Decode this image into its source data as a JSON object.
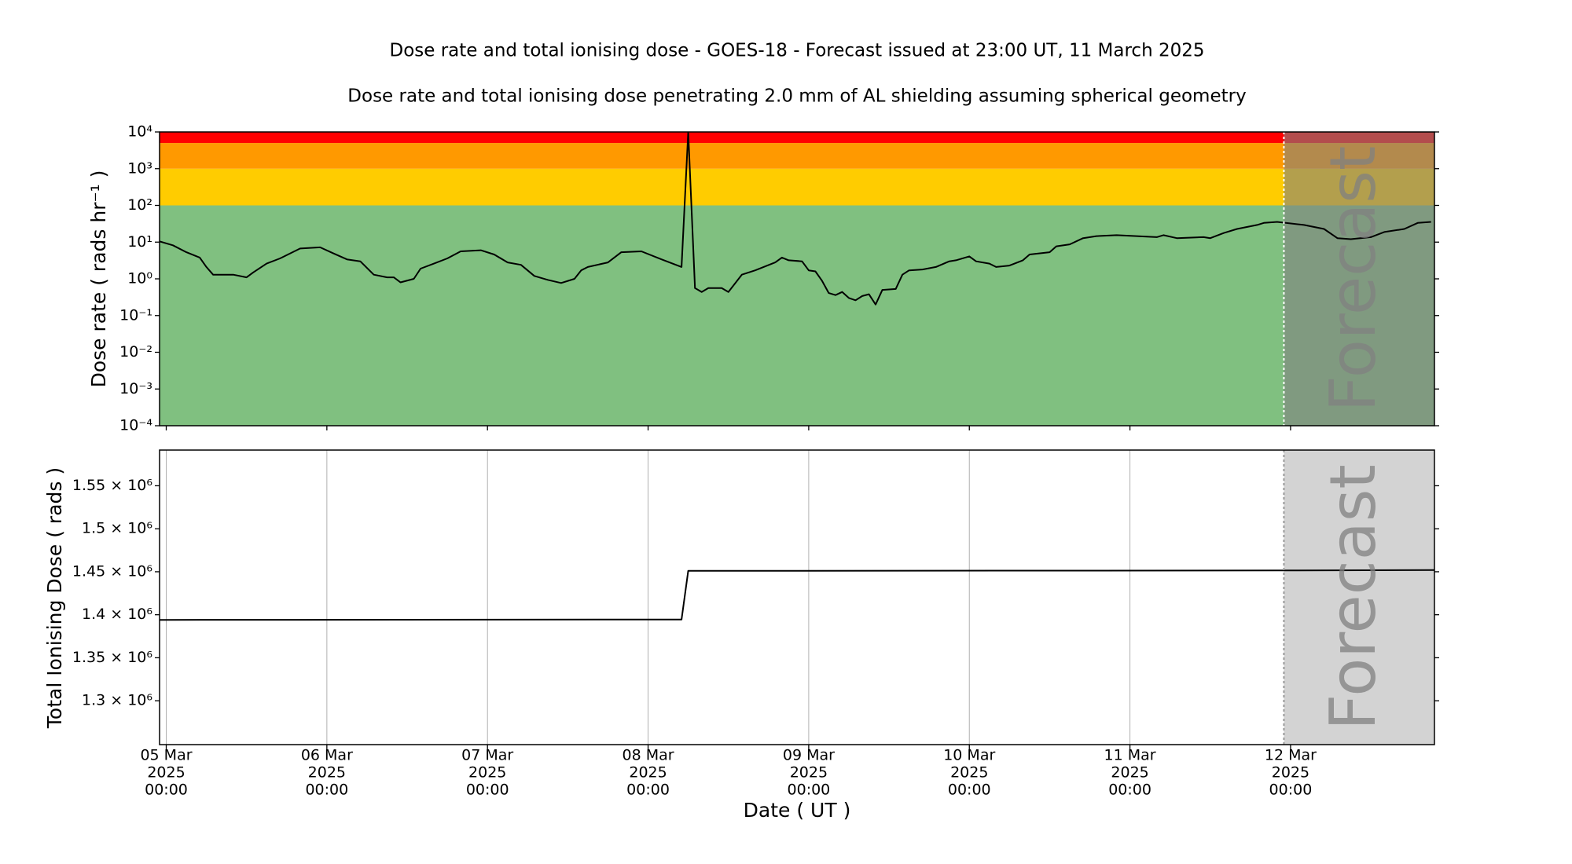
{
  "chart_data": [
    {
      "type": "line",
      "title": "Dose rate and total ionising dose - GOES-18 - Forecast issued at 23:00 UT, 11 March 2025",
      "subtitle": "Dose rate and total ionising dose penetrating 2.0 mm of AL shielding assuming spherical geometry",
      "ylabel": "Dose rate ( rads hr⁻¹ )",
      "yscale": "log",
      "xlim": [
        "2025-03-04T23:00",
        "2025-03-12T21:30"
      ],
      "ylim": [
        0.0001,
        10000
      ],
      "yticks": [
        {
          "value": 0.0001,
          "label": "10⁻⁴"
        },
        {
          "value": 0.001,
          "label": "10⁻³"
        },
        {
          "value": 0.01,
          "label": "10⁻²"
        },
        {
          "value": 0.1,
          "label": "10⁻¹"
        },
        {
          "value": 1,
          "label": "10⁰"
        },
        {
          "value": 10,
          "label": "10¹"
        },
        {
          "value": 100,
          "label": "10²"
        },
        {
          "value": 1000,
          "label": "10³"
        },
        {
          "value": 10000,
          "label": "10⁴"
        }
      ],
      "bands": [
        {
          "from": 0.0001,
          "to": 100,
          "color": "#80c080"
        },
        {
          "from": 100,
          "to": 1000,
          "color": "#ffcc00"
        },
        {
          "from": 1000,
          "to": 5000,
          "color": "#ff9900"
        },
        {
          "from": 5000,
          "to": 10000,
          "color": "#ff0000"
        }
      ],
      "forecast": {
        "start": "2025-03-11T23:00",
        "label": "Forecast",
        "color": "#808080",
        "line_color": "#ffffff"
      },
      "series": [
        {
          "color": "#000000",
          "x": [
            "2025-03-04T23:00",
            "2025-03-05T01:00",
            "2025-03-05T03:00",
            "2025-03-05T05:00",
            "2025-03-05T06:00",
            "2025-03-05T07:00",
            "2025-03-05T09:00",
            "2025-03-05T10:00",
            "2025-03-05T12:00",
            "2025-03-05T13:00",
            "2025-03-05T15:00",
            "2025-03-05T17:00",
            "2025-03-05T20:00",
            "2025-03-05T23:00",
            "2025-03-06T01:00",
            "2025-03-06T03:00",
            "2025-03-06T05:00",
            "2025-03-06T07:00",
            "2025-03-06T09:00",
            "2025-03-06T10:00",
            "2025-03-06T11:00",
            "2025-03-06T13:00",
            "2025-03-06T14:00",
            "2025-03-06T16:00",
            "2025-03-06T18:00",
            "2025-03-06T20:00",
            "2025-03-06T23:00",
            "2025-03-07T01:00",
            "2025-03-07T03:00",
            "2025-03-07T05:00",
            "2025-03-07T07:00",
            "2025-03-07T09:00",
            "2025-03-07T11:00",
            "2025-03-07T13:00",
            "2025-03-07T14:00",
            "2025-03-07T15:00",
            "2025-03-07T18:00",
            "2025-03-07T20:00",
            "2025-03-07T23:00",
            "2025-03-08T02:00",
            "2025-03-08T05:00",
            "2025-03-08T06:00",
            "2025-03-08T07:00",
            "2025-03-08T08:00",
            "2025-03-08T09:00",
            "2025-03-08T11:00",
            "2025-03-08T12:00",
            "2025-03-08T14:00",
            "2025-03-08T16:00",
            "2025-03-08T19:00",
            "2025-03-08T20:00",
            "2025-03-08T21:00",
            "2025-03-08T23:00",
            "2025-03-09T00:00",
            "2025-03-09T01:00",
            "2025-03-09T02:00",
            "2025-03-09T03:00",
            "2025-03-09T04:00",
            "2025-03-09T05:00",
            "2025-03-09T06:00",
            "2025-03-09T07:00",
            "2025-03-09T08:00",
            "2025-03-09T09:00",
            "2025-03-09T10:00",
            "2025-03-09T11:00",
            "2025-03-09T13:00",
            "2025-03-09T14:00",
            "2025-03-09T15:00",
            "2025-03-09T17:00",
            "2025-03-09T19:00",
            "2025-03-09T21:00",
            "2025-03-09T22:00",
            "2025-03-10T00:00",
            "2025-03-10T01:00",
            "2025-03-10T03:00",
            "2025-03-10T04:00",
            "2025-03-10T06:00",
            "2025-03-10T08:00",
            "2025-03-10T09:00",
            "2025-03-10T12:00",
            "2025-03-10T13:00",
            "2025-03-10T15:00",
            "2025-03-10T17:00",
            "2025-03-10T19:00",
            "2025-03-10T22:00",
            "2025-03-11T01:00",
            "2025-03-11T04:00",
            "2025-03-11T05:00",
            "2025-03-11T07:00",
            "2025-03-11T11:00",
            "2025-03-11T12:00",
            "2025-03-11T14:00",
            "2025-03-11T16:00",
            "2025-03-11T19:00",
            "2025-03-11T20:00",
            "2025-03-11T22:00",
            "2025-03-12T02:00",
            "2025-03-12T05:00",
            "2025-03-12T07:00",
            "2025-03-12T09:00",
            "2025-03-12T12:00",
            "2025-03-12T14:00",
            "2025-03-12T17:00",
            "2025-03-12T19:00",
            "2025-03-12T21:00"
          ],
          "values": [
            10.5,
            8.2,
            5.3,
            3.8,
            2.1,
            1.3,
            1.3,
            1.3,
            1.1,
            1.5,
            2.6,
            3.6,
            6.7,
            7.2,
            4.9,
            3.4,
            3.0,
            1.3,
            1.1,
            1.1,
            0.8,
            1.0,
            1.9,
            2.6,
            3.6,
            5.6,
            6.0,
            4.6,
            2.8,
            2.4,
            1.2,
            0.94,
            0.77,
            1.0,
            1.7,
            2.1,
            2.8,
            5.3,
            5.6,
            3.4,
            2.1,
            10000,
            0.56,
            0.44,
            0.56,
            0.56,
            0.44,
            1.3,
            1.7,
            2.8,
            3.8,
            3.2,
            3.0,
            1.7,
            1.6,
            0.88,
            0.41,
            0.36,
            0.44,
            0.3,
            0.26,
            0.34,
            0.38,
            0.2,
            0.5,
            0.53,
            1.3,
            1.7,
            1.8,
            2.1,
            3.0,
            3.2,
            4.1,
            3.0,
            2.6,
            2.1,
            2.3,
            3.2,
            4.6,
            5.3,
            7.7,
            8.7,
            12.8,
            14.6,
            15.5,
            14.6,
            13.7,
            15.5,
            12.8,
            13.7,
            12.8,
            17.7,
            22.8,
            29.4,
            33.3,
            35.5,
            29.4,
            22.8,
            12.8,
            12.0,
            13.7,
            18.8,
            22.8,
            33.3,
            35.5
          ]
        }
      ]
    },
    {
      "type": "line",
      "ylabel": "Total Ionising Dose ( rads )",
      "xlabel": "Date ( UT )",
      "xlim": [
        "2025-03-04T23:00",
        "2025-03-12T21:30"
      ],
      "ylim": [
        1249000,
        1591500
      ],
      "yticks": [
        {
          "value": 1300000,
          "label": "1.3 × 10⁶"
        },
        {
          "value": 1350000,
          "label": "1.35 × 10⁶"
        },
        {
          "value": 1400000,
          "label": "1.4 × 10⁶"
        },
        {
          "value": 1450000,
          "label": "1.45 × 10⁶"
        },
        {
          "value": 1500000,
          "label": "1.5 × 10⁶"
        },
        {
          "value": 1550000,
          "label": "1.55 × 10⁶"
        }
      ],
      "xticks": [
        {
          "value": "2025-03-05T00:00",
          "label": [
            "05 Mar",
            "2025",
            "00:00"
          ]
        },
        {
          "value": "2025-03-06T00:00",
          "label": [
            "06 Mar",
            "2025",
            "00:00"
          ]
        },
        {
          "value": "2025-03-07T00:00",
          "label": [
            "07 Mar",
            "2025",
            "00:00"
          ]
        },
        {
          "value": "2025-03-08T00:00",
          "label": [
            "08 Mar",
            "2025",
            "00:00"
          ]
        },
        {
          "value": "2025-03-09T00:00",
          "label": [
            "09 Mar",
            "2025",
            "00:00"
          ]
        },
        {
          "value": "2025-03-10T00:00",
          "label": [
            "10 Mar",
            "2025",
            "00:00"
          ]
        },
        {
          "value": "2025-03-11T00:00",
          "label": [
            "11 Mar",
            "2025",
            "00:00"
          ]
        },
        {
          "value": "2025-03-12T00:00",
          "label": [
            "12 Mar",
            "2025",
            "00:00"
          ]
        }
      ],
      "grid": "x",
      "forecast": {
        "start": "2025-03-11T23:00",
        "label": "Forecast",
        "color": "#d3d3d3",
        "line_color": "#999999"
      },
      "series": [
        {
          "color": "#000000",
          "x": [
            "2025-03-04T23:00",
            "2025-03-08T05:00",
            "2025-03-08T06:00",
            "2025-03-11T22:00",
            "2025-03-12T21:30"
          ],
          "values": [
            1394000,
            1394500,
            1451000,
            1451500,
            1452000
          ]
        }
      ]
    }
  ]
}
